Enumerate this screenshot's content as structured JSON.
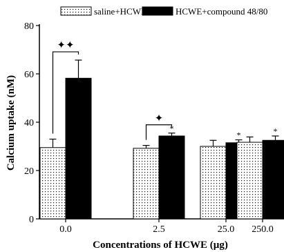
{
  "chart_data": {
    "type": "bar",
    "xlabel": "Concentrations of HCWE (µg)",
    "ylabel": "Calcium uptake (nM)",
    "ylim": [
      0,
      80
    ],
    "yticks": [
      0,
      20,
      40,
      60,
      80
    ],
    "categories": [
      "0.0",
      "2.5",
      "25.0",
      "250.0"
    ],
    "legend_position": "top",
    "series": [
      {
        "name": "saline+HCWE",
        "pattern": "dotted",
        "color": "#ffffff",
        "values": [
          29.5,
          29.2,
          30.0,
          31.7
        ],
        "errors": [
          3.5,
          1.2,
          2.5,
          2.2
        ],
        "significance": [
          "",
          "",
          "",
          ""
        ]
      },
      {
        "name": "HCWE+compound 48/80",
        "pattern": "solid",
        "color": "#000000",
        "values": [
          58.2,
          34.3,
          31.5,
          32.5
        ],
        "errors": [
          7.5,
          1.2,
          1.2,
          1.8
        ],
        "significance": [
          "",
          "*",
          "*",
          "*"
        ]
      }
    ],
    "brackets": [
      {
        "category": "0.0",
        "label": "✦✦"
      },
      {
        "category": "2.5",
        "label": "✦"
      }
    ]
  }
}
